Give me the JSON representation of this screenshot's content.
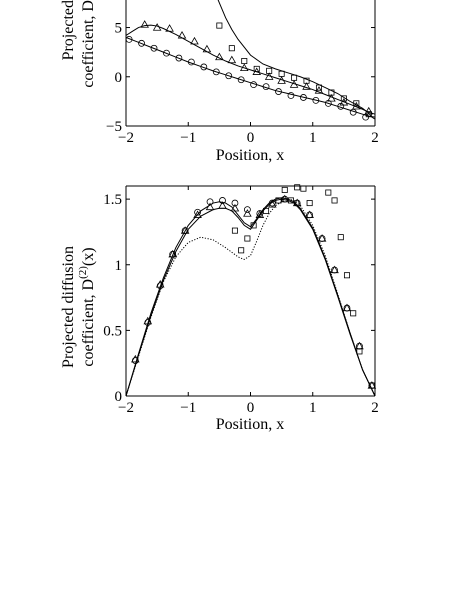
{
  "chart_data": [
    {
      "type": "line",
      "xlabel": "Position, x",
      "ylabel_lines": [
        "Projected",
        "coefficient, D"
      ],
      "xlim": [
        -2,
        2
      ],
      "ylim": [
        -5,
        12
      ],
      "view_ylim": [
        -5,
        8
      ],
      "xticks": [
        -2,
        -1,
        0,
        1,
        2
      ],
      "xtick_labels": [
        "−2",
        "−1",
        "0",
        "1",
        "2"
      ],
      "yticks": [
        -5,
        0,
        5
      ],
      "ytick_labels": [
        "−5",
        "0",
        "5"
      ],
      "grid": false,
      "line_color": "#000000",
      "lines": [
        {
          "x": [
            -2,
            -1.8,
            -1.6,
            -1.4,
            -1.2,
            -1.0,
            -0.8,
            -0.6,
            -0.4,
            -0.2,
            0.0,
            0.2,
            0.4,
            0.6,
            0.8,
            1.0,
            1.2,
            1.4,
            1.6,
            1.8,
            1.9,
            2.0
          ],
          "y": [
            4.0,
            3.5,
            3.0,
            2.5,
            2.0,
            1.5,
            1.05,
            0.6,
            0.2,
            -0.2,
            -0.6,
            -1.0,
            -1.4,
            -1.7,
            -2.0,
            -2.3,
            -2.6,
            -3.0,
            -3.4,
            -3.8,
            -4.0,
            -4.1
          ]
        },
        {
          "x": [
            -2,
            -1.9,
            -1.8,
            -1.7,
            -1.6,
            -1.5,
            -1.4,
            -1.2,
            -1.0,
            -0.8,
            -0.6,
            -0.4,
            -0.2,
            0.0,
            0.2,
            0.4,
            0.6,
            0.8,
            1.0,
            1.2,
            1.4,
            1.6,
            1.8,
            1.9,
            2.0
          ],
          "y": [
            4.2,
            4.6,
            5.0,
            5.2,
            5.25,
            5.15,
            4.9,
            4.3,
            3.6,
            2.9,
            2.2,
            1.6,
            1.1,
            0.7,
            0.3,
            -0.1,
            -0.5,
            -0.9,
            -1.3,
            -1.8,
            -2.3,
            -2.8,
            -3.3,
            -3.6,
            -3.8
          ]
        },
        {
          "x": [
            -0.8,
            -0.7,
            -0.6,
            -0.5,
            -0.4,
            -0.3,
            -0.2,
            -0.1,
            0.0,
            0.2,
            0.4,
            0.6,
            0.8,
            1.0,
            1.2,
            1.4,
            1.6,
            1.8,
            1.9,
            1.95,
            2.0
          ],
          "y": [
            12.0,
            10.5,
            9.0,
            7.5,
            6.0,
            4.8,
            3.8,
            3.0,
            2.2,
            1.3,
            0.8,
            0.4,
            0.0,
            -0.5,
            -1.1,
            -1.7,
            -2.5,
            -3.2,
            -3.7,
            -4.1,
            -4.3
          ]
        }
      ],
      "series": [
        {
          "name": "",
          "marker": "circle",
          "x": [
            -1.95,
            -1.75,
            -1.55,
            -1.35,
            -1.15,
            -0.95,
            -0.75,
            -0.55,
            -0.35,
            -0.15,
            0.05,
            0.25,
            0.45,
            0.65,
            0.85,
            1.05,
            1.25,
            1.45,
            1.65,
            1.85
          ],
          "y": [
            3.8,
            3.4,
            2.9,
            2.4,
            1.9,
            1.5,
            1.0,
            0.5,
            0.1,
            -0.3,
            -0.8,
            -1.0,
            -1.5,
            -1.9,
            -2.1,
            -2.4,
            -2.7,
            -3.0,
            -3.6,
            -4.1
          ]
        },
        {
          "name": "",
          "marker": "triangle",
          "x": [
            -1.7,
            -1.5,
            -1.3,
            -1.1,
            -0.9,
            -0.7,
            -0.5,
            -0.3,
            -0.1,
            0.1,
            0.3,
            0.5,
            0.7,
            0.9,
            1.1,
            1.3,
            1.5,
            1.7,
            1.9
          ],
          "y": [
            5.3,
            5.0,
            4.9,
            4.2,
            3.6,
            2.8,
            2.0,
            1.7,
            0.9,
            0.5,
            0.0,
            -0.4,
            -0.8,
            -1.0,
            -1.4,
            -2.2,
            -2.6,
            -3.0,
            -3.5
          ]
        },
        {
          "name": "",
          "marker": "square",
          "x": [
            -0.5,
            -0.3,
            -0.1,
            0.1,
            0.3,
            0.5,
            0.7,
            0.9,
            1.1,
            1.3,
            1.5,
            1.7,
            1.9
          ],
          "y": [
            5.2,
            2.9,
            1.6,
            0.8,
            0.6,
            0.3,
            -0.1,
            -0.4,
            -1.1,
            -1.6,
            -2.2,
            -2.7,
            -3.8
          ]
        }
      ]
    },
    {
      "type": "line",
      "xlabel": "Position, x",
      "ylabel_line1": "Projected diffusion",
      "ylabel_line2_prefix": "coefficient, D",
      "ylabel_sup": "(2)",
      "ylabel_line2_suffix": "(x)",
      "xlim": [
        -2,
        2
      ],
      "ylim": [
        0,
        1.6
      ],
      "xticks": [
        -2,
        -1,
        0,
        1,
        2
      ],
      "xtick_labels": [
        "−2",
        "−1",
        "0",
        "1",
        "2"
      ],
      "yticks": [
        0,
        0.5,
        1,
        1.5
      ],
      "ytick_labels": [
        "0",
        "0.5",
        "1",
        "1.5"
      ],
      "grid": false,
      "line_color": "#000000",
      "lines": [
        {
          "style": "solid",
          "x": [
            -2,
            -1.8,
            -1.6,
            -1.4,
            -1.2,
            -1.0,
            -0.8,
            -0.6,
            -0.5,
            -0.4,
            -0.3,
            -0.2,
            -0.1,
            0.0,
            0.1,
            0.2,
            0.3,
            0.4,
            0.5,
            0.6,
            0.7,
            0.8,
            1.0,
            1.2,
            1.4,
            1.6,
            1.8,
            2.0
          ],
          "y": [
            0.0,
            0.32,
            0.63,
            0.9,
            1.13,
            1.3,
            1.41,
            1.47,
            1.48,
            1.47,
            1.44,
            1.38,
            1.32,
            1.29,
            1.35,
            1.42,
            1.47,
            1.5,
            1.51,
            1.5,
            1.48,
            1.43,
            1.28,
            1.05,
            0.77,
            0.48,
            0.2,
            0.0
          ]
        },
        {
          "style": "solid",
          "x": [
            -2,
            -1.8,
            -1.6,
            -1.4,
            -1.2,
            -1.0,
            -0.8,
            -0.6,
            -0.5,
            -0.4,
            -0.3,
            -0.2,
            -0.1,
            0.0,
            0.1,
            0.2,
            0.3,
            0.4,
            0.5,
            0.6,
            0.7,
            0.8,
            1.0,
            1.2,
            1.4,
            1.6,
            1.8,
            2.0
          ],
          "y": [
            0.0,
            0.31,
            0.61,
            0.88,
            1.1,
            1.27,
            1.37,
            1.42,
            1.43,
            1.43,
            1.41,
            1.36,
            1.3,
            1.27,
            1.34,
            1.41,
            1.46,
            1.49,
            1.5,
            1.49,
            1.47,
            1.42,
            1.27,
            1.04,
            0.76,
            0.47,
            0.2,
            0.0
          ]
        },
        {
          "style": "dotted",
          "x": [
            -2,
            -1.8,
            -1.6,
            -1.4,
            -1.2,
            -1.0,
            -0.8,
            -0.6,
            -0.4,
            -0.2,
            -0.1,
            0.0,
            0.1,
            0.2,
            0.3,
            0.4,
            0.5,
            0.6,
            0.7,
            0.8,
            1.0,
            1.2,
            1.4,
            1.6,
            1.8,
            2.0
          ],
          "y": [
            0.0,
            0.3,
            0.6,
            0.87,
            1.06,
            1.17,
            1.21,
            1.19,
            1.13,
            1.06,
            1.04,
            1.07,
            1.18,
            1.3,
            1.39,
            1.45,
            1.48,
            1.5,
            1.49,
            1.45,
            1.3,
            1.07,
            0.78,
            0.48,
            0.2,
            0.0
          ]
        }
      ],
      "series": [
        {
          "name": "",
          "marker": "circle",
          "x": [
            -1.85,
            -1.65,
            -1.45,
            -1.25,
            -1.05,
            -0.85,
            -0.65,
            -0.45,
            -0.25,
            -0.05,
            0.15,
            0.35,
            0.55,
            0.75,
            0.95,
            1.15,
            1.35,
            1.55,
            1.75,
            1.95
          ],
          "y": [
            0.27,
            0.56,
            0.84,
            1.08,
            1.26,
            1.4,
            1.48,
            1.49,
            1.47,
            1.42,
            1.39,
            1.47,
            1.5,
            1.47,
            1.38,
            1.2,
            0.96,
            0.67,
            0.38,
            0.08
          ]
        },
        {
          "name": "",
          "marker": "triangle",
          "x": [
            -1.85,
            -1.65,
            -1.45,
            -1.25,
            -1.05,
            -0.85,
            -0.65,
            -0.45,
            -0.25,
            -0.05,
            0.15,
            0.35,
            0.55,
            0.75,
            0.95,
            1.15,
            1.35,
            1.55,
            1.75,
            1.95
          ],
          "y": [
            0.28,
            0.57,
            0.85,
            1.08,
            1.26,
            1.38,
            1.44,
            1.45,
            1.43,
            1.39,
            1.38,
            1.46,
            1.5,
            1.47,
            1.38,
            1.2,
            0.96,
            0.67,
            0.38,
            0.08
          ]
        },
        {
          "name": "",
          "marker": "square",
          "x": [
            -0.25,
            -0.15,
            -0.05,
            0.05,
            0.25,
            0.45,
            0.55,
            0.65,
            0.75,
            0.85,
            0.95,
            1.25,
            1.35,
            1.45,
            1.55,
            1.65,
            1.75,
            1.95
          ],
          "y": [
            1.26,
            1.11,
            1.2,
            1.3,
            1.41,
            1.49,
            1.57,
            1.49,
            1.59,
            1.58,
            1.47,
            1.55,
            1.49,
            1.21,
            0.92,
            0.63,
            0.34,
            0.08
          ]
        }
      ]
    }
  ]
}
